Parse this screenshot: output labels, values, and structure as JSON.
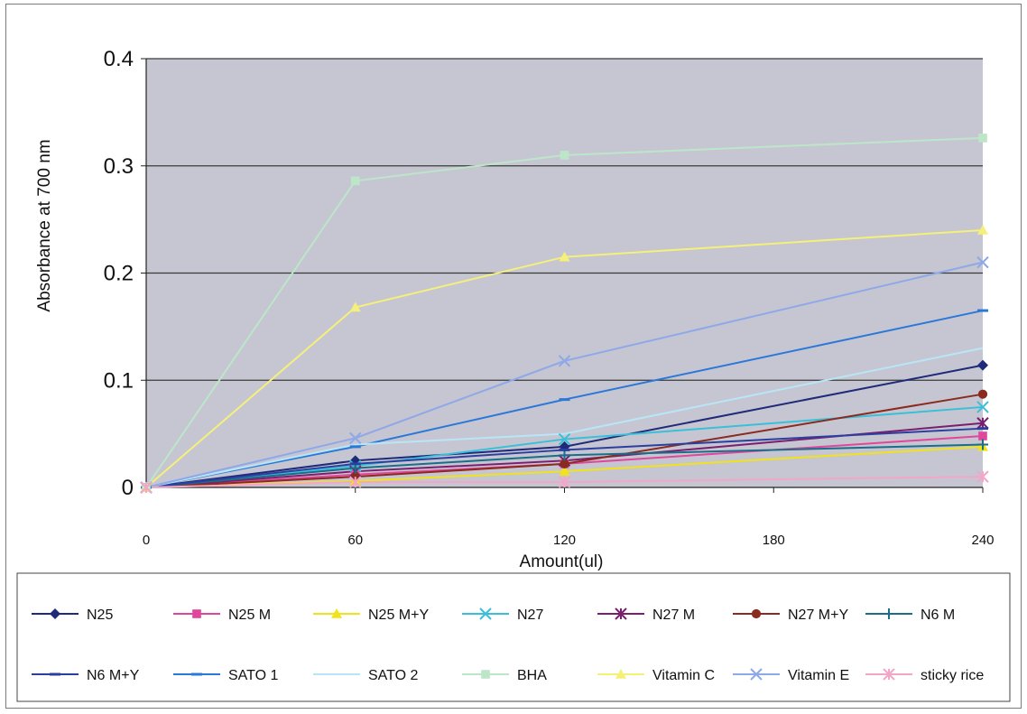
{
  "chart_data": {
    "type": "line",
    "title": "",
    "xlabel": "Amount(ul)",
    "ylabel": "Absorbance at 700 nm",
    "categories": [
      "0",
      "60",
      "120",
      "180",
      "240"
    ],
    "x_tick_labels": [
      "0",
      "60",
      "120",
      "180",
      "240"
    ],
    "y_tick_labels": [
      "0",
      "0.1",
      "0.2",
      "0.3",
      "0.4"
    ],
    "ylim": [
      0,
      0.4
    ],
    "grid": "horizontal",
    "plot_background": "#c6c6d2",
    "legend_position": "bottom",
    "series": [
      {
        "name": "N25",
        "color": "#1f2a78",
        "marker": "diamond",
        "values": [
          0,
          0.025,
          0.038,
          null,
          0.114
        ]
      },
      {
        "name": "N25 M",
        "color": "#e0479a",
        "marker": "square",
        "values": [
          0,
          0.012,
          0.022,
          null,
          0.048
        ]
      },
      {
        "name": "N25 M+Y",
        "color": "#f2e21a",
        "marker": "triangle",
        "values": [
          0,
          0.006,
          0.015,
          null,
          0.038
        ]
      },
      {
        "name": "N27",
        "color": "#39c0d8",
        "marker": "x",
        "values": [
          0,
          0.02,
          0.045,
          null,
          0.075
        ]
      },
      {
        "name": "N27 M",
        "color": "#7a1f6e",
        "marker": "star",
        "values": [
          0,
          0.015,
          0.025,
          null,
          0.06
        ]
      },
      {
        "name": "N27 M+Y",
        "color": "#8b2a1e",
        "marker": "circle",
        "values": [
          0,
          0.01,
          0.022,
          null,
          0.087
        ]
      },
      {
        "name": "N6 M",
        "color": "#1b6e88",
        "marker": "plus",
        "values": [
          0,
          0.018,
          0.03,
          null,
          0.04
        ]
      },
      {
        "name": "N6 M+Y",
        "color": "#2d3f9e",
        "marker": "dash",
        "values": [
          0,
          0.022,
          0.035,
          null,
          0.055
        ]
      },
      {
        "name": "SATO 1",
        "color": "#2b78d8",
        "marker": "dash",
        "values": [
          0,
          0.038,
          0.082,
          null,
          0.165
        ]
      },
      {
        "name": "SATO 2",
        "color": "#b9e6f7",
        "marker": "none",
        "values": [
          0,
          0.04,
          0.05,
          null,
          0.13
        ]
      },
      {
        "name": "BHA",
        "color": "#bde6c8",
        "marker": "square",
        "values": [
          0,
          0.286,
          0.31,
          null,
          0.326
        ]
      },
      {
        "name": "Vitamin C",
        "color": "#f5f07a",
        "marker": "triangle",
        "values": [
          0,
          0.168,
          0.215,
          null,
          0.24
        ]
      },
      {
        "name": "Vitamin E",
        "color": "#8ea8e8",
        "marker": "x",
        "values": [
          0,
          0.046,
          0.118,
          null,
          0.21
        ]
      },
      {
        "name": "sticky rice",
        "color": "#f3a6c8",
        "marker": "star",
        "values": [
          0,
          0.005,
          0.005,
          null,
          0.01
        ]
      }
    ]
  }
}
